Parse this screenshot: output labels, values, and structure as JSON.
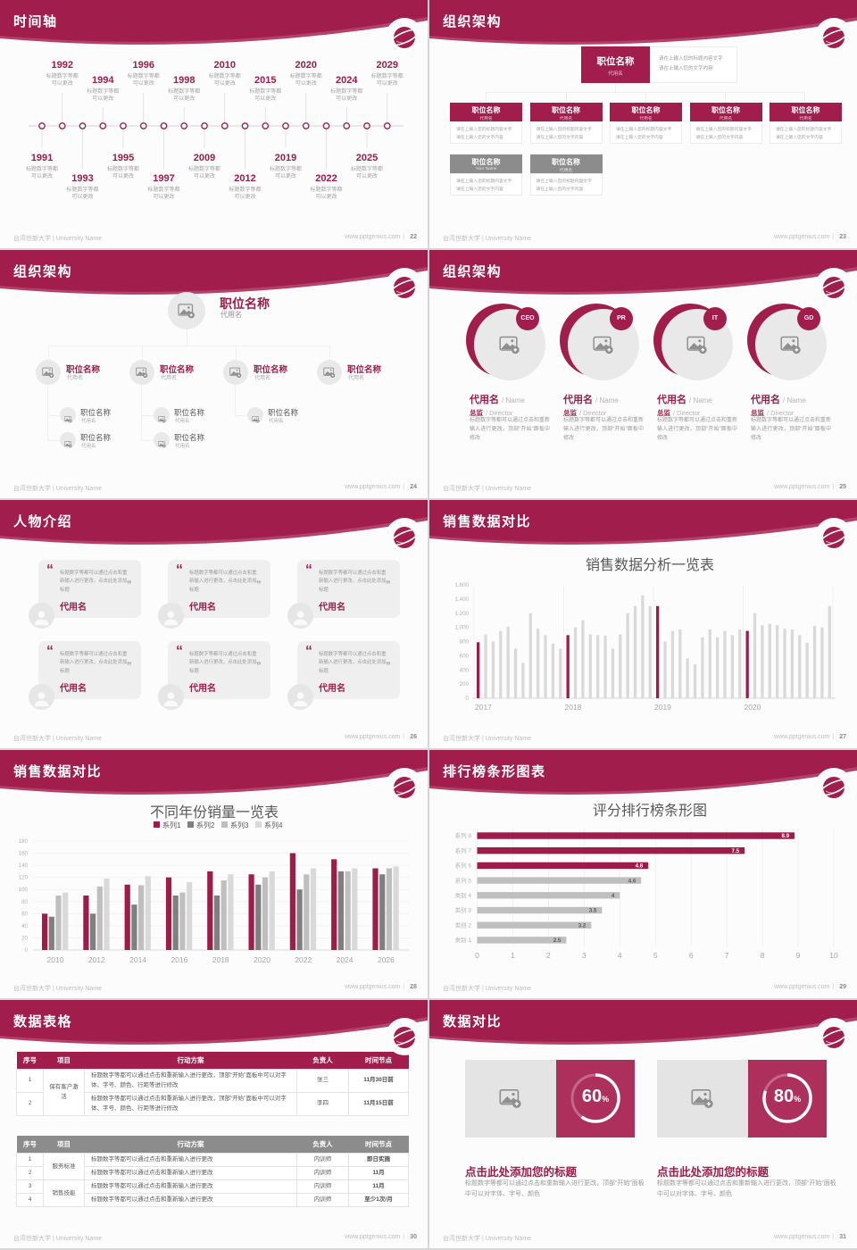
{
  "brand": {
    "accent": "#a01d4c",
    "chart_maroon": "#9e1b4a",
    "gray_header": "#8c8c8c",
    "footer_left": "台湾世新大学 | University Name",
    "footer_site": "www.pptgenius.com"
  },
  "slides": {
    "timeline": {
      "title": "时间轴",
      "page": "22",
      "desc_lines": [
        "标题数字等都",
        "可以更改"
      ],
      "events": [
        {
          "year": "1991",
          "pos": "b-near"
        },
        {
          "year": "1992",
          "pos": "t-high"
        },
        {
          "year": "1993",
          "pos": "b-far"
        },
        {
          "year": "1994",
          "pos": "t-low"
        },
        {
          "year": "1995",
          "pos": "b-near"
        },
        {
          "year": "1996",
          "pos": "t-high"
        },
        {
          "year": "1997",
          "pos": "b-far"
        },
        {
          "year": "1998",
          "pos": "t-low"
        },
        {
          "year": "2009",
          "pos": "b-near"
        },
        {
          "year": "2010",
          "pos": "t-high"
        },
        {
          "year": "2012",
          "pos": "b-far"
        },
        {
          "year": "2015",
          "pos": "t-low"
        },
        {
          "year": "2019",
          "pos": "b-near"
        },
        {
          "year": "2020",
          "pos": "t-high"
        },
        {
          "year": "2022",
          "pos": "b-far"
        },
        {
          "year": "2024",
          "pos": "t-low"
        },
        {
          "year": "2025",
          "pos": "b-near"
        },
        {
          "year": "2029",
          "pos": "t-high"
        }
      ]
    },
    "org_boxes": {
      "title": "组织架构",
      "page": "23",
      "root": {
        "name": "职位名称",
        "sub": "代用名"
      },
      "root_note": [
        "请在上输入您的标题内容文字",
        "请在上输入您的文字内容"
      ],
      "note_lines": [
        "请在上输入您的标题内容文字",
        "请在上输入您的文字内容"
      ],
      "row1": [
        {
          "name": "职位名称",
          "sub": "代用名"
        },
        {
          "name": "职位名称",
          "sub": "代用名"
        },
        {
          "name": "职位名称",
          "sub": "代用名"
        },
        {
          "name": "职位名称",
          "sub": "代用名"
        },
        {
          "name": "职位名称",
          "sub": "代用名"
        }
      ],
      "row2": [
        {
          "name": "职位名称",
          "sub": "Your Name"
        },
        {
          "name": "职位名称",
          "sub": "代用名"
        }
      ]
    },
    "org_tree": {
      "title": "组织架构",
      "page": "24",
      "root": {
        "name": "职位名称",
        "sub": "代用名"
      },
      "branches": [
        {
          "name": "职位名称",
          "sub": "代用名",
          "children": [
            {
              "name": "职位名称",
              "sub": "代用名"
            },
            {
              "name": "职位名称",
              "sub": "代用名"
            }
          ]
        },
        {
          "name": "职位名称",
          "sub": "代用名",
          "children": [
            {
              "name": "职位名称",
              "sub": "代用名"
            },
            {
              "name": "职位名称",
              "sub": "代用名"
            }
          ]
        },
        {
          "name": "职位名称",
          "sub": "代用名",
          "children": [
            {
              "name": "职位名称",
              "sub": "代用名"
            }
          ]
        },
        {
          "name": "职位名称",
          "sub": "代用名",
          "children": []
        }
      ]
    },
    "org_circles": {
      "title": "组织架构",
      "page": "25",
      "members": [
        {
          "badge": "CEO",
          "name": "代用名",
          "name_en": "/ Name",
          "role": "总监",
          "role_en": "/ Director",
          "desc": "标题数字等都可以通过点击和重新输入进行更改，顶部“开始”面板中修改"
        },
        {
          "badge": "PR",
          "name": "代用名",
          "name_en": "/ Name",
          "role": "总监",
          "role_en": "/ Director",
          "desc": "标题数字等都可以通过点击和重新输入进行更改，顶部“开始”面板中修改"
        },
        {
          "badge": "IT",
          "name": "代用名",
          "name_en": "/ Name",
          "role": "总监",
          "role_en": "/ Director",
          "desc": "标题数字等都可以通过点击和重新输入进行更改，顶部“开始”面板中修改"
        },
        {
          "badge": "GD",
          "name": "代用名",
          "name_en": "/ Name",
          "role": "总监",
          "role_en": "/ Director",
          "desc": "标题数字等都可以通过点击和重新输入进行更改，顶部“开始”面板中修改"
        }
      ]
    },
    "people": {
      "title": "人物介绍",
      "page": "26",
      "cards": [
        {
          "quote": "标题数字等都可以通过点击和重新输入进行更改，点击此处添加标题",
          "name": "代用名"
        },
        {
          "quote": "标题数字等都可以通过点击和重新输入进行更改，点击此处添加标题",
          "name": "代用名"
        },
        {
          "quote": "标题数字等都可以通过点击和重新输入进行更改，点击此处添加标题",
          "name": "代用名"
        },
        {
          "quote": "标题数字等都可以通过点击和重新输入进行更改，点击此处添加标题",
          "name": "代用名"
        },
        {
          "quote": "标题数字等都可以通过点击和重新输入进行更改，点击此处添加标题",
          "name": "代用名"
        },
        {
          "quote": "标题数字等都可以通过点击和重新输入进行更改，点击此处添加标题",
          "name": "代用名"
        }
      ]
    },
    "sales_monthly": {
      "title": "销售数据对比",
      "page": "27"
    },
    "sales_yearly": {
      "title": "销售数据对比",
      "page": "28"
    },
    "ranking": {
      "title": "排行榜条形图表",
      "page": "29"
    },
    "table_slide": {
      "title": "数据表格",
      "page": "30",
      "columns": [
        "序号",
        "项目",
        "行动方案",
        "负责人",
        "时间节点"
      ],
      "tables": [
        {
          "theme": "maroon",
          "groups": [
            {
              "project": "保有客户激活",
              "rows": [
                {
                  "no": "1",
                  "plan": "标题数字等都可以通过点击和重新输入进行更改，顶部“开始”面板中可以对字体、字号、颜色、行距等进行修改",
                  "owner": "张三",
                  "time": "11月30日前"
                },
                {
                  "no": "2",
                  "plan": "标题数字等都可以通过点击和重新输入进行更改，顶部“开始”面板中可以对字体、字号、颜色、行距等进行修改",
                  "owner": "李四",
                  "time": "11月15日前"
                }
              ]
            }
          ]
        },
        {
          "theme": "gray",
          "groups": [
            {
              "project": "服务标准",
              "rows": [
                {
                  "no": "1",
                  "plan": "标题数字等都可以通过点击和重新输入进行更改",
                  "owner": "内训师",
                  "time": "即日实施"
                },
                {
                  "no": "2",
                  "plan": "标题数字等都可以通过点击和重新输入进行更改",
                  "owner": "内训师",
                  "time": "11月"
                }
              ]
            },
            {
              "project": "销售技能",
              "rows": [
                {
                  "no": "3",
                  "plan": "标题数字等都可以通过点击和重新输入进行更改",
                  "owner": "内训师",
                  "time": "11月"
                },
                {
                  "no": "4",
                  "plan": "标题数字等都可以通过点击和重新输入进行更改",
                  "owner": "内训师",
                  "time": "至少1次/月"
                }
              ]
            }
          ]
        }
      ]
    },
    "compare": {
      "title": "数据对比",
      "page": "31",
      "items": [
        {
          "percent": 60,
          "heading": "点击此处添加您的标题",
          "desc": "标题数字等都可以通过点击和重新输入进行更改，顶部“开始”面板中可以对字体、字号、颜色"
        },
        {
          "percent": 80,
          "heading": "点击此处添加您的标题",
          "desc": "标题数字等都可以通过点击和重新输入进行更改，顶部“开始”面板中可以对字体、字号、颜色"
        }
      ]
    }
  },
  "chart_data": [
    {
      "id": "sales_monthly",
      "type": "bar",
      "title": "销售数据分析一览表",
      "group_labels": [
        "2017",
        "2018",
        "2019",
        "2020"
      ],
      "values": [
        [
          790,
          900,
          800,
          950,
          1010,
          700,
          500,
          1200,
          980,
          890,
          770,
          700
        ],
        [
          890,
          1000,
          1100,
          900,
          890,
          880,
          700,
          900,
          1200,
          1300,
          1450,
          1300
        ],
        [
          1300,
          800,
          950,
          970,
          560,
          480,
          860,
          970,
          860,
          950,
          890,
          970
        ],
        [
          950,
          1200,
          1030,
          1050,
          1030,
          980,
          970,
          890,
          780,
          1020,
          1000,
          1300
        ]
      ],
      "highlight_first_of_group": true,
      "bar_color": "#d9d9d9",
      "highlight_color": "#9e1b4a",
      "ylim": [
        0,
        1600
      ],
      "ytick_step": 200,
      "legend_position": "none",
      "grid": "vertical-faint"
    },
    {
      "id": "sales_yearly",
      "type": "bar",
      "title": "不同年份销量一览表",
      "categories": [
        "2010",
        "2012",
        "2014",
        "2016",
        "2018",
        "2020",
        "2022",
        "2024",
        "2026"
      ],
      "series": [
        {
          "name": "系列1",
          "color": "#9e1b4a",
          "values": [
            60,
            90,
            108,
            120,
            130,
            125,
            160,
            150,
            135
          ]
        },
        {
          "name": "系列2",
          "color": "#7f7f7f",
          "values": [
            55,
            60,
            75,
            90,
            90,
            108,
            100,
            130,
            125
          ]
        },
        {
          "name": "系列3",
          "color": "#bfbfbf",
          "values": [
            90,
            105,
            107,
            95,
            115,
            120,
            125,
            130,
            135
          ]
        },
        {
          "name": "系列4",
          "color": "#d9d9d9",
          "values": [
            95,
            118,
            122,
            112,
            125,
            130,
            135,
            135,
            138
          ]
        }
      ],
      "ylim": [
        0,
        180
      ],
      "ytick_step": 20,
      "legend_position": "top",
      "grid": "horizontal-faint"
    },
    {
      "id": "ranking",
      "type": "bar_horizontal",
      "title": "评分排行榜条形图",
      "categories": [
        "系列 8",
        "系列 7",
        "系列 6",
        "系列 5",
        "类别 4",
        "类别 3",
        "类别 2",
        "类别 1"
      ],
      "values": [
        8.9,
        7.5,
        4.8,
        4.6,
        4,
        3.5,
        3.2,
        2.5
      ],
      "colors": [
        "#9e1b4a",
        "#9e1b4a",
        "#9e1b4a",
        "#bfbfbf",
        "#bfbfbf",
        "#bfbfbf",
        "#bfbfbf",
        "#bfbfbf"
      ],
      "xlim": [
        0,
        10
      ],
      "xtick_step": 1,
      "grid": "vertical-faint",
      "value_labels": "inside-end"
    }
  ]
}
